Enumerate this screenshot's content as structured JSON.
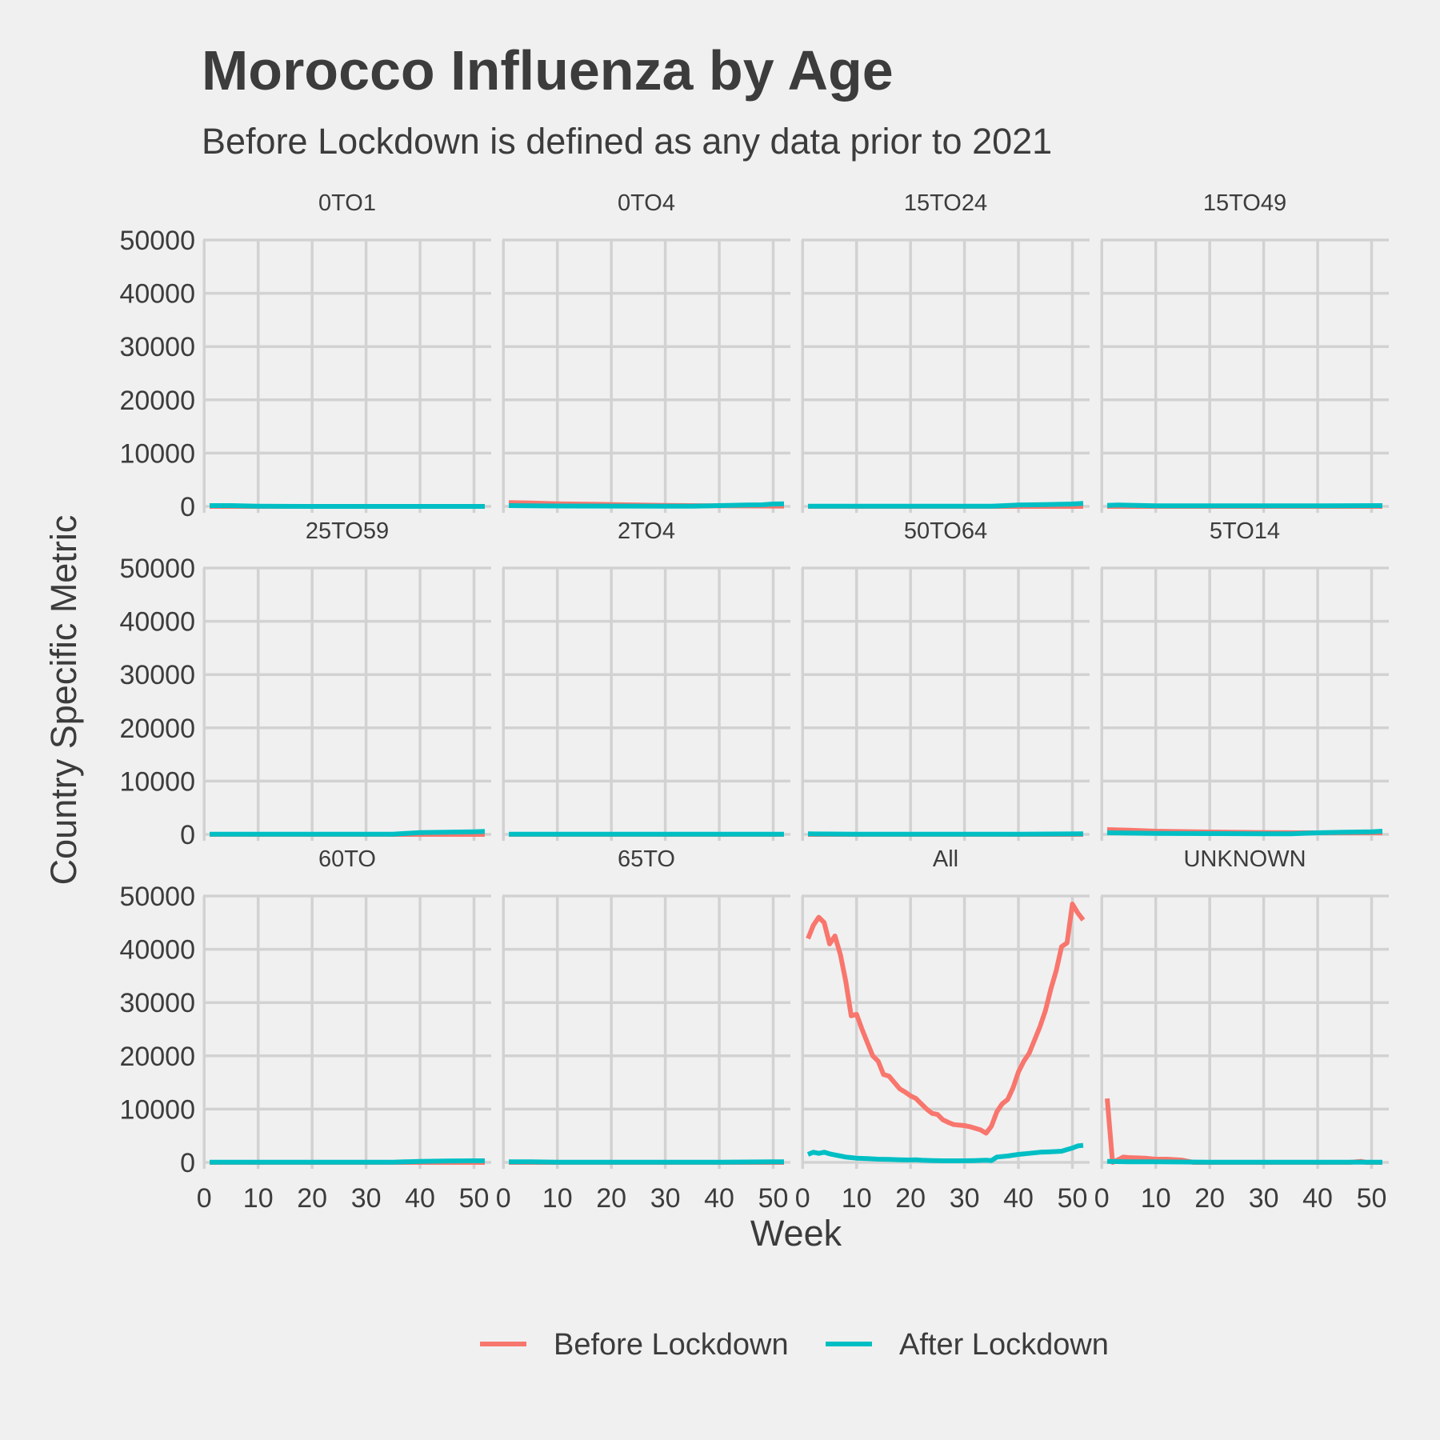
{
  "chart_data": {
    "type": "line",
    "title": "Morocco Influenza by Age",
    "subtitle": "Before Lockdown is defined as any data prior to 2021",
    "xlabel": "Week",
    "ylabel": "Country Specific Metric",
    "xlim": [
      1,
      52
    ],
    "ylim": [
      0,
      50000
    ],
    "x_ticks": [
      0,
      10,
      20,
      30,
      40,
      50
    ],
    "y_ticks": [
      0,
      10000,
      20000,
      30000,
      40000,
      50000
    ],
    "grid": true,
    "legend_position": "bottom",
    "legend": [
      {
        "name": "Before Lockdown",
        "color": "#f8766d"
      },
      {
        "name": "After Lockdown",
        "color": "#00bfc4"
      }
    ],
    "facets": [
      {
        "label": "0TO1",
        "series": [
          {
            "name": "Before Lockdown",
            "x": [
              1,
              52
            ],
            "y": [
              0,
              0
            ]
          },
          {
            "name": "After Lockdown",
            "x": [
              1,
              5,
              10,
              20,
              30,
              40,
              52
            ],
            "y": [
              150,
              150,
              50,
              0,
              0,
              0,
              0
            ]
          }
        ]
      },
      {
        "label": "0TO4",
        "series": [
          {
            "name": "Before Lockdown",
            "x": [
              1,
              5,
              10,
              20,
              30,
              40,
              52
            ],
            "y": [
              700,
              650,
              500,
              350,
              200,
              100,
              50
            ]
          },
          {
            "name": "After Lockdown",
            "x": [
              1,
              5,
              10,
              20,
              30,
              35,
              40,
              45,
              48,
              50,
              52
            ],
            "y": [
              150,
              100,
              80,
              60,
              50,
              50,
              150,
              250,
              300,
              450,
              500
            ]
          }
        ]
      },
      {
        "label": "15TO24",
        "series": [
          {
            "name": "Before Lockdown",
            "x": [
              1,
              52
            ],
            "y": [
              0,
              0
            ]
          },
          {
            "name": "After Lockdown",
            "x": [
              1,
              10,
              20,
              30,
              35,
              40,
              45,
              50,
              52
            ],
            "y": [
              50,
              50,
              50,
              50,
              50,
              250,
              350,
              450,
              550
            ]
          }
        ]
      },
      {
        "label": "15TO49",
        "series": [
          {
            "name": "Before Lockdown",
            "x": [
              1,
              52
            ],
            "y": [
              0,
              0
            ]
          },
          {
            "name": "After Lockdown",
            "x": [
              1,
              3,
              10,
              20,
              30,
              40,
              52
            ],
            "y": [
              200,
              250,
              100,
              100,
              100,
              100,
              150
            ]
          }
        ]
      },
      {
        "label": "25TO59",
        "series": [
          {
            "name": "Before Lockdown",
            "x": [
              1,
              52
            ],
            "y": [
              0,
              0
            ]
          },
          {
            "name": "After Lockdown",
            "x": [
              1,
              10,
              20,
              30,
              35,
              40,
              45,
              50,
              52
            ],
            "y": [
              50,
              50,
              50,
              50,
              50,
              350,
              400,
              500,
              550
            ]
          }
        ]
      },
      {
        "label": "2TO4",
        "series": [
          {
            "name": "Before Lockdown",
            "x": [
              1,
              52
            ],
            "y": [
              0,
              0
            ]
          },
          {
            "name": "After Lockdown",
            "x": [
              1,
              52
            ],
            "y": [
              50,
              50
            ]
          }
        ]
      },
      {
        "label": "50TO64",
        "series": [
          {
            "name": "Before Lockdown",
            "x": [
              1,
              52
            ],
            "y": [
              0,
              0
            ]
          },
          {
            "name": "After Lockdown",
            "x": [
              1,
              10,
              20,
              30,
              40,
              52
            ],
            "y": [
              100,
              50,
              50,
              50,
              50,
              100
            ]
          }
        ]
      },
      {
        "label": "5TO14",
        "series": [
          {
            "name": "Before Lockdown",
            "x": [
              1,
              5,
              10,
              20,
              30,
              40,
              50,
              52
            ],
            "y": [
              900,
              800,
              600,
              450,
              350,
              300,
              300,
              300
            ]
          },
          {
            "name": "After Lockdown",
            "x": [
              1,
              10,
              20,
              30,
              35,
              40,
              45,
              50,
              52
            ],
            "y": [
              300,
              200,
              150,
              100,
              100,
              300,
              400,
              500,
              600
            ]
          }
        ]
      },
      {
        "label": "60TO",
        "series": [
          {
            "name": "Before Lockdown",
            "x": [
              1,
              52
            ],
            "y": [
              0,
              0
            ]
          },
          {
            "name": "After Lockdown",
            "x": [
              1,
              10,
              20,
              30,
              35,
              40,
              45,
              50,
              52
            ],
            "y": [
              50,
              50,
              50,
              50,
              50,
              200,
              250,
              300,
              300
            ]
          }
        ]
      },
      {
        "label": "65TO",
        "series": [
          {
            "name": "Before Lockdown",
            "x": [
              1,
              52
            ],
            "y": [
              0,
              0
            ]
          },
          {
            "name": "After Lockdown",
            "x": [
              1,
              5,
              10,
              20,
              30,
              40,
              50,
              52
            ],
            "y": [
              100,
              100,
              50,
              50,
              50,
              50,
              100,
              100
            ]
          }
        ]
      },
      {
        "label": "All",
        "series": [
          {
            "name": "Before Lockdown",
            "x": [
              1,
              2,
              3,
              4,
              5,
              6,
              7,
              8,
              9,
              10,
              11,
              12,
              13,
              14,
              15,
              16,
              17,
              18,
              19,
              20,
              21,
              22,
              23,
              24,
              25,
              26,
              27,
              28,
              29,
              30,
              31,
              32,
              33,
              34,
              35,
              36,
              37,
              38,
              39,
              40,
              41,
              42,
              43,
              44,
              45,
              46,
              47,
              48,
              49,
              50,
              51,
              52
            ],
            "y": [
              42000,
              44500,
              46000,
              45000,
              41000,
              42500,
              39000,
              34000,
              27500,
              27800,
              25000,
              22500,
              20000,
              19000,
              16500,
              16200,
              15000,
              13800,
              13200,
              12500,
              12000,
              11000,
              10000,
              9200,
              9000,
              8000,
              7500,
              7100,
              7000,
              6900,
              6700,
              6400,
              6100,
              5500,
              6800,
              9500,
              11000,
              11800,
              14000,
              17000,
              19000,
              20500,
              23000,
              25500,
              28500,
              32500,
              36000,
              40500,
              41200,
              48500,
              46800,
              45500
            ]
          },
          {
            "name": "After Lockdown",
            "x": [
              1,
              2,
              3,
              4,
              5,
              6,
              7,
              8,
              9,
              10,
              12,
              14,
              16,
              18,
              20,
              21,
              22,
              24,
              26,
              28,
              30,
              32,
              34,
              35,
              36,
              38,
              40,
              42,
              44,
              46,
              48,
              50,
              51,
              52
            ],
            "y": [
              1500,
              1900,
              1700,
              1900,
              1600,
              1400,
              1200,
              1000,
              900,
              800,
              700,
              600,
              550,
              500,
              450,
              500,
              400,
              350,
              300,
              300,
              300,
              350,
              400,
              350,
              1000,
              1200,
              1500,
              1700,
              1900,
              2000,
              2100,
              2700,
              3100,
              3200
            ]
          }
        ]
      },
      {
        "label": "UNKNOWN",
        "series": [
          {
            "name": "Before Lockdown",
            "x": [
              1,
              2,
              3,
              4,
              5,
              8,
              10,
              12,
              14,
              15,
              16,
              17,
              20,
              30,
              40,
              46,
              47,
              48,
              49,
              52
            ],
            "y": [
              12000,
              0,
              500,
              1000,
              900,
              800,
              600,
              600,
              500,
              400,
              200,
              0,
              0,
              0,
              0,
              0,
              100,
              200,
              0,
              0
            ]
          },
          {
            "name": "After Lockdown",
            "x": [
              1,
              5,
              10,
              20,
              30,
              40,
              52
            ],
            "y": [
              200,
              100,
              100,
              50,
              50,
              50,
              50
            ]
          }
        ]
      }
    ]
  }
}
